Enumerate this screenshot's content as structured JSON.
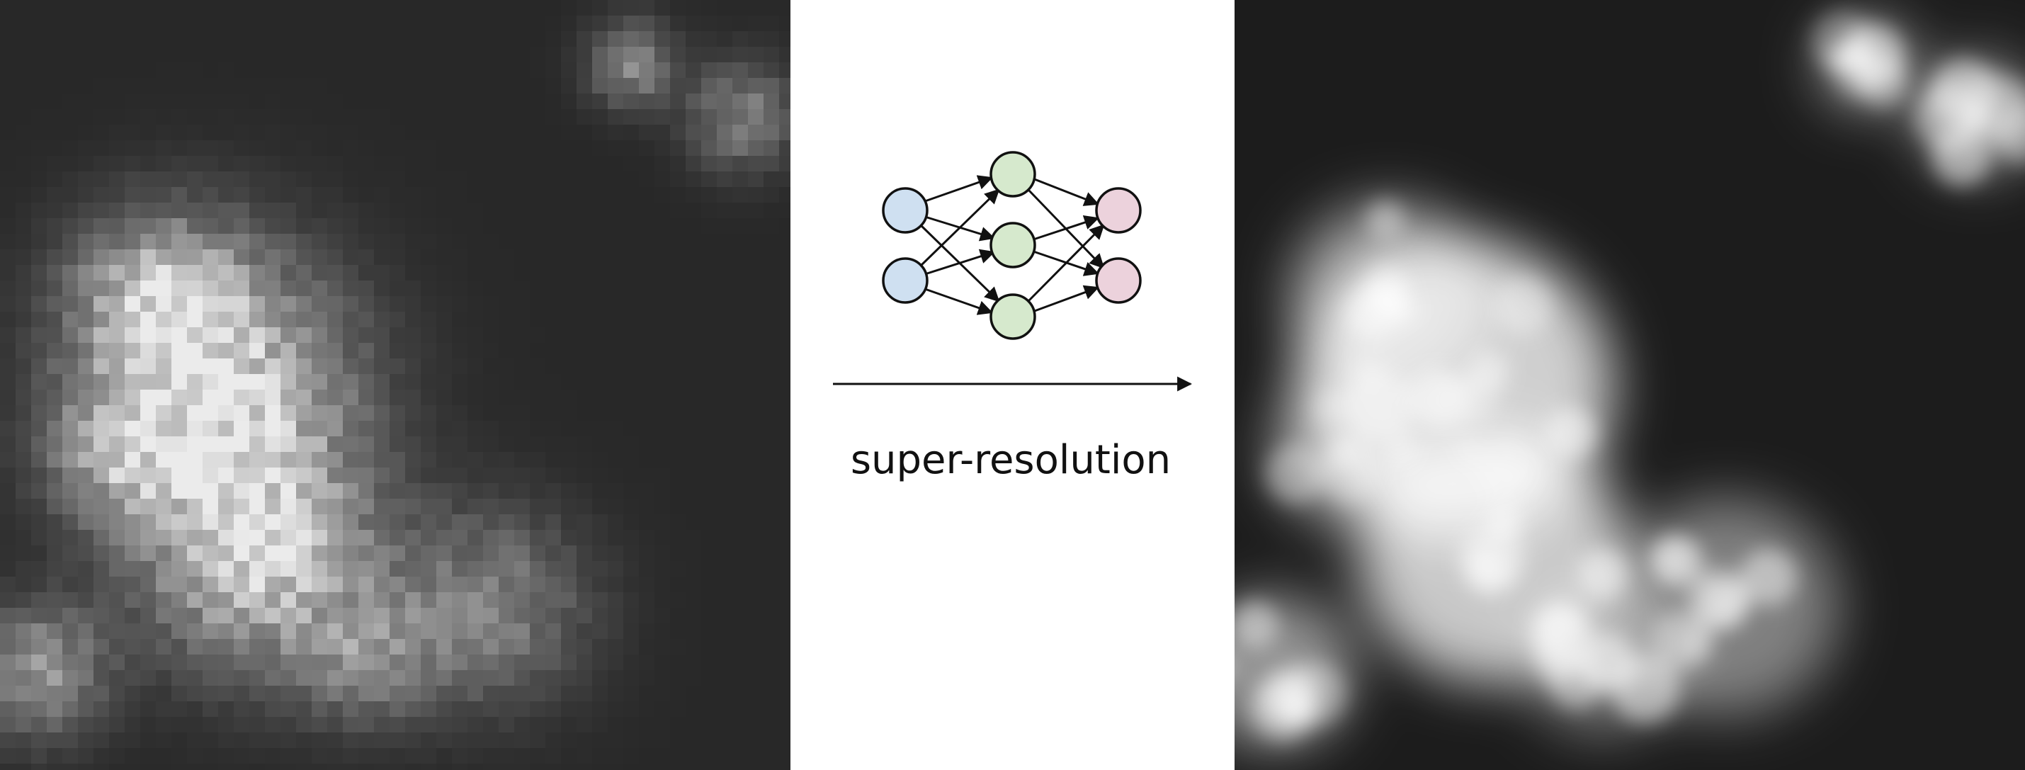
{
  "label": "super-resolution"
}
